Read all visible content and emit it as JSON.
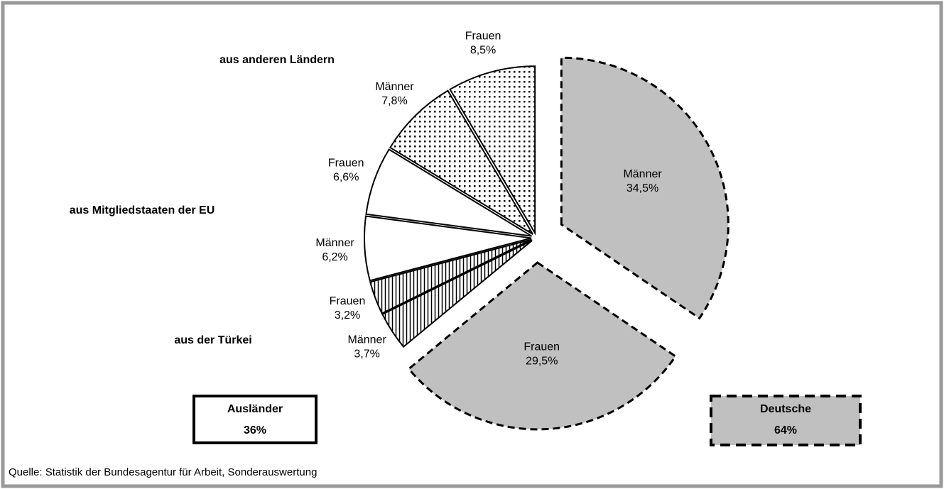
{
  "chart_data": {
    "type": "pie",
    "categories": [
      "Männer",
      "Frauen",
      "Männer",
      "Frauen",
      "Männer",
      "Frauen",
      "Männer",
      "Frauen"
    ],
    "values": [
      34.5,
      29.5,
      3.7,
      3.2,
      6.2,
      6.6,
      7.8,
      8.5
    ],
    "value_labels": [
      "34,5%",
      "29,5%",
      "3,7%",
      "3,2%",
      "6,2%",
      "6,6%",
      "7,8%",
      "8,5%"
    ],
    "fills": [
      "gray",
      "gray",
      "vertical-lines",
      "vertical-lines",
      "white",
      "white",
      "dots",
      "dots"
    ],
    "color": "#c0c0c0",
    "annotations": [
      "aus der Türkei",
      "aus Mitgliedstaaten der EU",
      "aus anderen Ländern"
    ],
    "groups": [
      {
        "name": "Ausländer",
        "value": 36,
        "value_label": "36%"
      },
      {
        "name": "Deutsche",
        "value": 64,
        "value_label": "64%"
      }
    ],
    "source": "Quelle: Statistik der Bundesagentur für Arbeit, Sonderauswertung"
  }
}
